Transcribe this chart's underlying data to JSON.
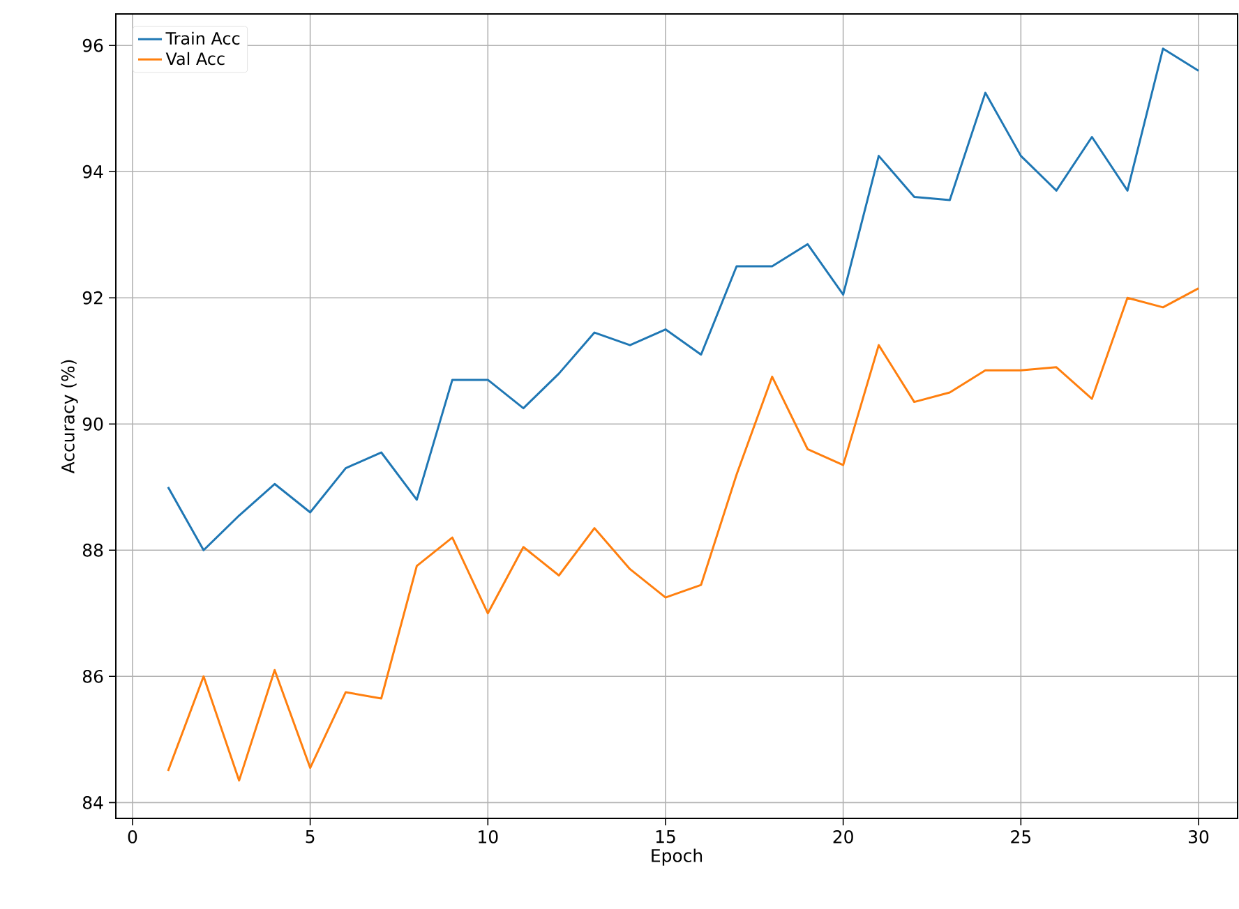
{
  "chart_data": {
    "type": "line",
    "xlabel": "Epoch",
    "ylabel": "Accuracy (%)",
    "x": [
      1,
      2,
      3,
      4,
      5,
      6,
      7,
      8,
      9,
      10,
      11,
      12,
      13,
      14,
      15,
      16,
      17,
      18,
      19,
      20,
      21,
      22,
      23,
      24,
      25,
      26,
      27,
      28,
      29,
      30
    ],
    "series": [
      {
        "name": "Train Acc",
        "color": "#1f77b4",
        "values": [
          89.0,
          88.0,
          88.55,
          89.05,
          88.6,
          89.3,
          89.55,
          88.8,
          90.7,
          90.7,
          90.25,
          90.8,
          91.45,
          91.25,
          91.5,
          91.1,
          92.5,
          92.5,
          92.85,
          92.05,
          94.25,
          93.6,
          93.55,
          95.25,
          94.25,
          93.7,
          94.55,
          93.7,
          95.95,
          95.6
        ]
      },
      {
        "name": "Val Acc",
        "color": "#ff7f0e",
        "values": [
          84.5,
          86.0,
          84.35,
          86.1,
          84.55,
          85.75,
          85.65,
          87.75,
          88.2,
          87.0,
          88.05,
          87.6,
          88.35,
          87.7,
          87.25,
          87.45,
          89.2,
          90.75,
          89.6,
          89.35,
          91.25,
          90.35,
          90.5,
          90.85,
          90.85,
          90.9,
          90.4,
          92.0,
          91.85,
          92.15
        ]
      }
    ],
    "xlim": [
      -0.47,
      31.1
    ],
    "ylim": [
      83.75,
      96.5
    ],
    "xticks": [
      0,
      5,
      10,
      15,
      20,
      25,
      30
    ],
    "yticks": [
      84,
      86,
      88,
      90,
      92,
      94,
      96
    ],
    "grid": true,
    "legend": "top left",
    "line_style": "solid",
    "marker": "none"
  }
}
